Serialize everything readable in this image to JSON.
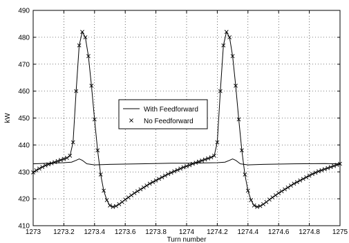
{
  "chart_data": {
    "type": "line",
    "title": "",
    "xlabel": "Turn number",
    "ylabel": "kW",
    "xlim": [
      1273,
      1275
    ],
    "ylim": [
      410,
      490
    ],
    "x_ticks": [
      1273,
      1273.2,
      1273.4,
      1273.6,
      1273.8,
      1274,
      1274.2,
      1274.4,
      1274.6,
      1274.8,
      1275
    ],
    "x_tick_labels": [
      "1273",
      "1273.2",
      "1273.4",
      "1273.6",
      "1273.8",
      "1274",
      "1274.2",
      "1274.4",
      "1274.6",
      "1274.8",
      "1275"
    ],
    "y_ticks": [
      410,
      420,
      430,
      440,
      450,
      460,
      470,
      480,
      490
    ],
    "y_tick_labels": [
      "410",
      "420",
      "430",
      "440",
      "450",
      "460",
      "470",
      "480",
      "490"
    ],
    "grid": true,
    "legend_placement": "center",
    "series": [
      {
        "name": "With Feedforward",
        "style": "solid-line",
        "color": "#000000",
        "x": [
          1273,
          1273.1,
          1273.2,
          1273.25,
          1273.28,
          1273.3,
          1273.32,
          1273.35,
          1273.4,
          1273.5,
          1273.7,
          1273.9,
          1274,
          1274.1,
          1274.2,
          1274.25,
          1274.28,
          1274.3,
          1274.32,
          1274.35,
          1274.4,
          1274.5,
          1274.7,
          1274.9,
          1275
        ],
        "y": [
          433.0,
          433.2,
          433.4,
          433.6,
          434.3,
          434.8,
          434.3,
          433.0,
          432.6,
          432.8,
          433.0,
          433.2,
          433.2,
          433.3,
          433.4,
          433.6,
          434.3,
          434.8,
          434.3,
          433.0,
          432.6,
          432.8,
          433.0,
          433.1,
          433.0
        ]
      },
      {
        "name": "No Feedforward",
        "style": "x-marker-line",
        "color": "#000000",
        "x": [
          1273,
          1273.02,
          1273.04,
          1273.06,
          1273.08,
          1273.1,
          1273.12,
          1273.14,
          1273.16,
          1273.18,
          1273.2,
          1273.22,
          1273.24,
          1273.26,
          1273.28,
          1273.3,
          1273.32,
          1273.34,
          1273.36,
          1273.38,
          1273.4,
          1273.42,
          1273.44,
          1273.46,
          1273.48,
          1273.5,
          1273.52,
          1273.54,
          1273.56,
          1273.58,
          1273.6,
          1273.62,
          1273.64,
          1273.66,
          1273.68,
          1273.7,
          1273.72,
          1273.74,
          1273.76,
          1273.78,
          1273.8,
          1273.82,
          1273.84,
          1273.86,
          1273.88,
          1273.9,
          1273.92,
          1273.94,
          1273.96,
          1273.98,
          1274,
          1274.02,
          1274.04,
          1274.06,
          1274.08,
          1274.1,
          1274.12,
          1274.14,
          1274.16,
          1274.18,
          1274.2,
          1274.22,
          1274.24,
          1274.26,
          1274.28,
          1274.3,
          1274.32,
          1274.34,
          1274.36,
          1274.38,
          1274.4,
          1274.42,
          1274.44,
          1274.46,
          1274.48,
          1274.5,
          1274.52,
          1274.54,
          1274.56,
          1274.58,
          1274.6,
          1274.62,
          1274.64,
          1274.66,
          1274.68,
          1274.7,
          1274.72,
          1274.74,
          1274.76,
          1274.78,
          1274.8,
          1274.82,
          1274.84,
          1274.86,
          1274.88,
          1274.9,
          1274.92,
          1274.94,
          1274.96,
          1274.98,
          1275
        ],
        "y": [
          429.8,
          430.6,
          431.2,
          431.8,
          432.4,
          432.8,
          433.2,
          433.6,
          434.0,
          434.4,
          434.8,
          435.2,
          436.0,
          441.0,
          460.0,
          477.0,
          482.0,
          480.0,
          473.0,
          462.0,
          449.5,
          438.0,
          429.0,
          423.0,
          419.5,
          417.5,
          417.0,
          417.3,
          418.0,
          418.8,
          419.7,
          420.5,
          421.3,
          422.1,
          422.8,
          423.5,
          424.2,
          424.9,
          425.6,
          426.2,
          426.8,
          427.4,
          428.0,
          428.6,
          429.2,
          429.7,
          430.2,
          430.7,
          431.2,
          431.7,
          432.1,
          432.5,
          433.0,
          433.4,
          433.8,
          434.2,
          434.6,
          435.0,
          435.4,
          436.0,
          441.0,
          460.0,
          477.0,
          482.0,
          480.0,
          473.0,
          462.0,
          449.5,
          438.0,
          429.0,
          423.0,
          419.5,
          417.5,
          417.0,
          417.3,
          418.0,
          418.8,
          419.7,
          420.5,
          421.3,
          422.1,
          422.8,
          423.5,
          424.2,
          424.9,
          425.6,
          426.2,
          426.8,
          427.4,
          428.0,
          428.6,
          429.2,
          429.7,
          430.2,
          430.6,
          431.0,
          431.4,
          431.8,
          432.2,
          432.6,
          433.0
        ]
      }
    ]
  }
}
